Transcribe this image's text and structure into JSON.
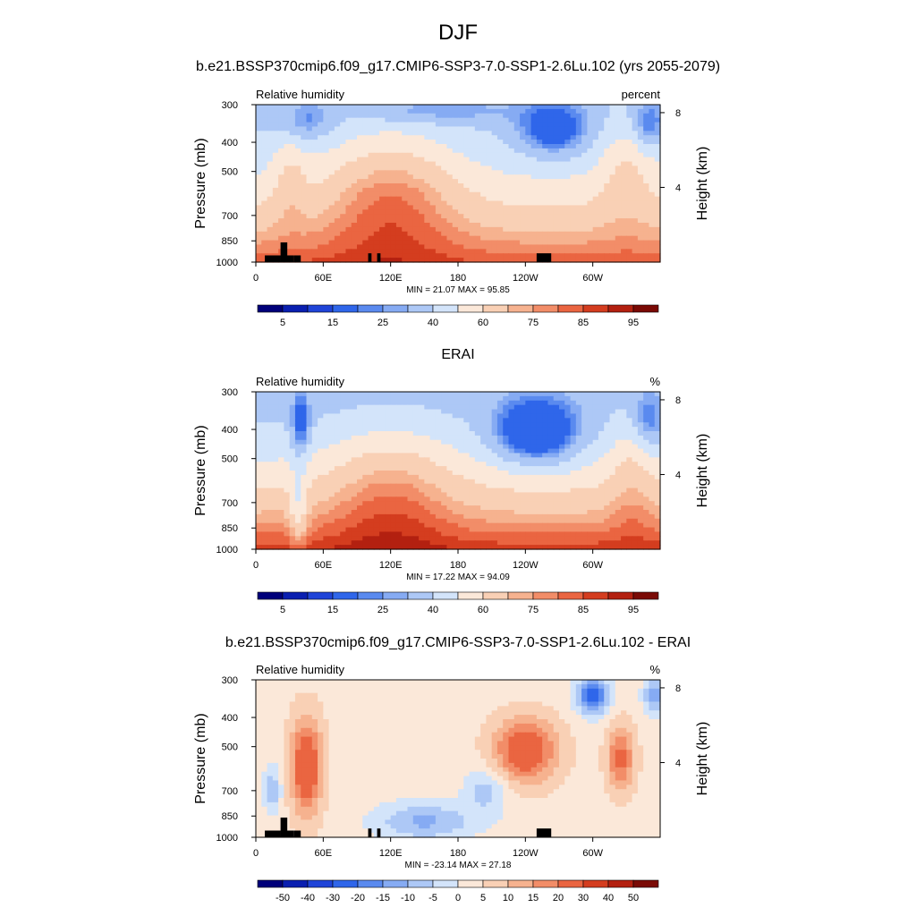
{
  "figure": {
    "season": "DJF",
    "main_title": "b.e21.BSSP370cmip6.f09_g17.CMIP6-SSP3-7.0-SSP1-2.6Lu.102 (yrs 2055-2079)"
  },
  "chart_data": [
    {
      "type": "heatmap",
      "title": "",
      "left_label": "Relative humidity",
      "right_label": "percent",
      "ylabel": "Pressure (mb)",
      "y2label": "Height (km)",
      "xlabel": "",
      "x_ticks": [
        "0",
        "60E",
        "120E",
        "180",
        "120W",
        "60W"
      ],
      "x_tick_values": [
        0,
        60,
        120,
        180,
        240,
        300
      ],
      "xlim": [
        0,
        360
      ],
      "y_ticks": [
        "300",
        "400",
        "500",
        "700",
        "850",
        "1000"
      ],
      "y_tick_values": [
        300,
        400,
        500,
        700,
        850,
        1000
      ],
      "ylim": [
        1000,
        300
      ],
      "y_scale": "log",
      "y2_ticks": [
        "8",
        "4"
      ],
      "y2_tick_values": [
        8,
        4
      ],
      "stats": "MIN =  21.07  MAX =  95.85",
      "colorbar": {
        "levels": [
          5,
          10,
          15,
          20,
          25,
          30,
          40,
          50,
          60,
          70,
          75,
          80,
          85,
          90,
          95
        ],
        "labels": [
          "5",
          "15",
          "25",
          "40",
          "60",
          "75",
          "85",
          "95"
        ],
        "colors": [
          "#00007a",
          "#0a1fb0",
          "#1f44d8",
          "#2f66ea",
          "#5a8aef",
          "#86abf3",
          "#adc8f6",
          "#d3e4fa",
          "#fbe8d9",
          "#f9d0b5",
          "#f6b28f",
          "#f28d68",
          "#ea6541",
          "#d43d1f",
          "#b32010",
          "#7a0a05"
        ]
      },
      "topography": true
    },
    {
      "type": "heatmap",
      "title": "ERAI",
      "left_label": "Relative humidity",
      "right_label": "%",
      "ylabel": "Pressure (mb)",
      "y2label": "Height (km)",
      "xlabel": "",
      "x_ticks": [
        "0",
        "60E",
        "120E",
        "180",
        "120W",
        "60W"
      ],
      "x_tick_values": [
        0,
        60,
        120,
        180,
        240,
        300
      ],
      "xlim": [
        0,
        360
      ],
      "y_ticks": [
        "300",
        "400",
        "500",
        "700",
        "850",
        "1000"
      ],
      "y_tick_values": [
        300,
        400,
        500,
        700,
        850,
        1000
      ],
      "ylim": [
        1000,
        300
      ],
      "y_scale": "log",
      "y2_ticks": [
        "8",
        "4"
      ],
      "y2_tick_values": [
        8,
        4
      ],
      "stats": "MIN =  17.22  MAX =  94.09",
      "colorbar": {
        "levels": [
          5,
          10,
          15,
          20,
          25,
          30,
          40,
          50,
          60,
          70,
          75,
          80,
          85,
          90,
          95
        ],
        "labels": [
          "5",
          "15",
          "25",
          "40",
          "60",
          "75",
          "85",
          "95"
        ],
        "colors": [
          "#00007a",
          "#0a1fb0",
          "#1f44d8",
          "#2f66ea",
          "#5a8aef",
          "#86abf3",
          "#adc8f6",
          "#d3e4fa",
          "#fbe8d9",
          "#f9d0b5",
          "#f6b28f",
          "#f28d68",
          "#ea6541",
          "#d43d1f",
          "#b32010",
          "#7a0a05"
        ]
      },
      "topography": false
    },
    {
      "type": "heatmap",
      "title": "b.e21.BSSP370cmip6.f09_g17.CMIP6-SSP3-7.0-SSP1-2.6Lu.102 - ERAI",
      "left_label": "Relative humidity",
      "right_label": "%",
      "ylabel": "Pressure (mb)",
      "y2label": "Height (km)",
      "xlabel": "",
      "x_ticks": [
        "0",
        "60E",
        "120E",
        "180",
        "120W",
        "60W"
      ],
      "x_tick_values": [
        0,
        60,
        120,
        180,
        240,
        300
      ],
      "xlim": [
        0,
        360
      ],
      "y_ticks": [
        "300",
        "400",
        "500",
        "700",
        "850",
        "1000"
      ],
      "y_tick_values": [
        300,
        400,
        500,
        700,
        850,
        1000
      ],
      "ylim": [
        1000,
        300
      ],
      "y_scale": "log",
      "y2_ticks": [
        "8",
        "4"
      ],
      "y2_tick_values": [
        8,
        4
      ],
      "stats": "MIN = -23.14  MAX =  27.18",
      "colorbar": {
        "levels": [
          -50,
          -40,
          -30,
          -20,
          -15,
          -10,
          -5,
          0,
          5,
          10,
          15,
          20,
          30,
          40,
          50
        ],
        "labels": [
          "-50",
          "-40",
          "-30",
          "-20",
          "-15",
          "-10",
          "-5",
          "0",
          "5",
          "10",
          "15",
          "20",
          "30",
          "40",
          "50"
        ],
        "colors": [
          "#00007a",
          "#0a1fb0",
          "#1f44d8",
          "#2f66ea",
          "#5a8aef",
          "#86abf3",
          "#adc8f6",
          "#d3e4fa",
          "#fbe8d9",
          "#f9d0b5",
          "#f6b28f",
          "#f28d68",
          "#ea6541",
          "#d43d1f",
          "#b32010",
          "#7a0a05"
        ]
      },
      "topography": true
    }
  ]
}
